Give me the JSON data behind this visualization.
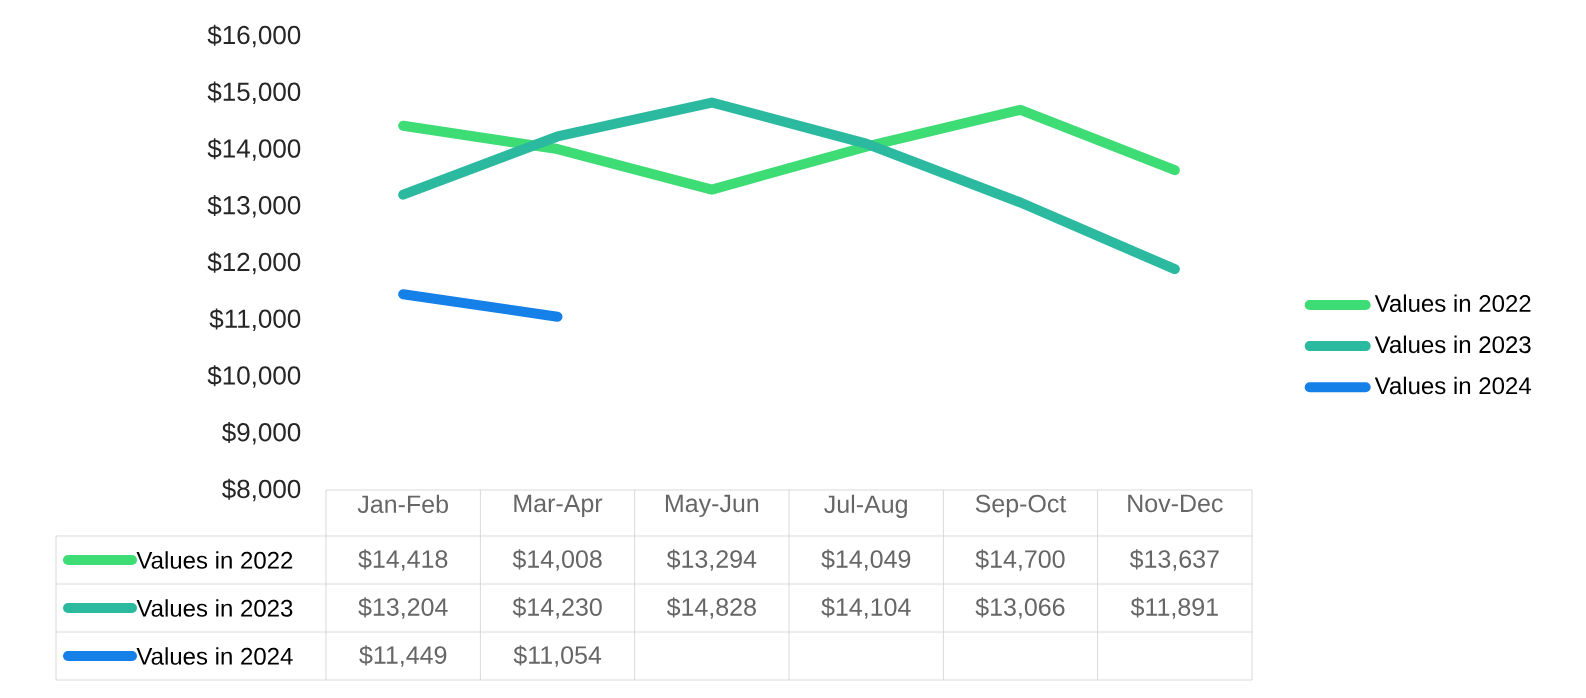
{
  "chart_data": {
    "type": "line",
    "categories": [
      "Jan-Feb",
      "Mar-Apr",
      "May-Jun",
      "Jul-Aug",
      "Sep-Oct",
      "Nov-Dec"
    ],
    "series": [
      {
        "name": "Values in 2022",
        "color": "#3ddc74",
        "values": [
          14418,
          14008,
          13294,
          14049,
          14700,
          13637
        ],
        "value_labels": [
          "$14,418",
          "$14,008",
          "$13,294",
          "$14,049",
          "$14,700",
          "$13,637"
        ]
      },
      {
        "name": "Values in 2023",
        "color": "#2bbaa0",
        "values": [
          13204,
          14230,
          14828,
          14104,
          13066,
          11891
        ],
        "value_labels": [
          "$13,204",
          "$14,230",
          "$14,828",
          "$14,104",
          "$13,066",
          "$11,891"
        ]
      },
      {
        "name": "Values in 2024",
        "color": "#1480e8",
        "values": [
          11449,
          11054,
          null,
          null,
          null,
          null
        ],
        "value_labels": [
          "$11,449",
          "$11,054",
          null,
          null,
          null,
          null
        ]
      }
    ],
    "ylim": [
      8000,
      16000
    ],
    "yticks": [
      {
        "value": 8000,
        "label": "$8,000"
      },
      {
        "value": 9000,
        "label": "$9,000"
      },
      {
        "value": 10000,
        "label": "$10,000"
      },
      {
        "value": 11000,
        "label": "$11,000"
      },
      {
        "value": 12000,
        "label": "$12,000"
      },
      {
        "value": 13000,
        "label": "$13,000"
      },
      {
        "value": 14000,
        "label": "$14,000"
      },
      {
        "value": 15000,
        "label": "$15,000"
      },
      {
        "value": 16000,
        "label": "$16,000"
      }
    ],
    "grid": false,
    "legend": "right",
    "marker": "none",
    "line_style": "solid"
  }
}
